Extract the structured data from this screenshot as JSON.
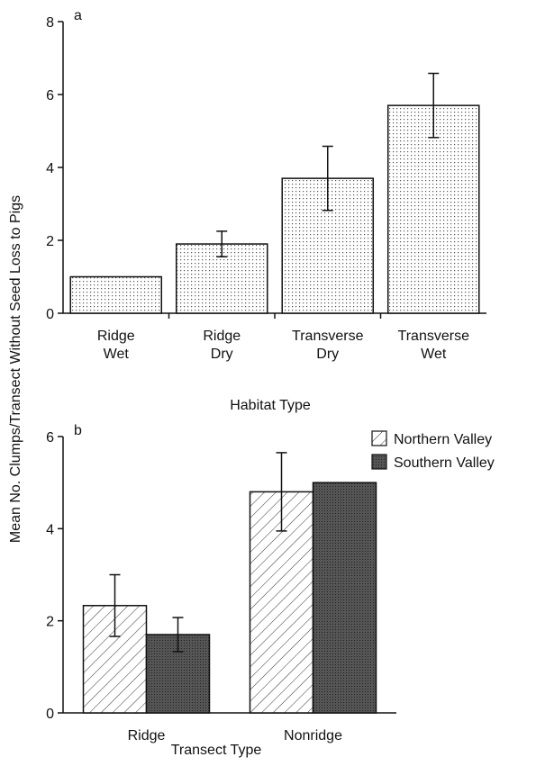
{
  "chart_data": [
    {
      "type": "bar",
      "panel": "a",
      "ylabel": "Mean No. Clumps/Transect Without Seed Loss to Pigs",
      "xlabel": "Habitat Type",
      "categories": [
        [
          "Ridge",
          "Wet"
        ],
        [
          "Ridge",
          "Dry"
        ],
        [
          "Transverse",
          "Dry"
        ],
        [
          "Transverse",
          "Wet"
        ]
      ],
      "values": [
        1.0,
        1.9,
        3.7,
        5.7
      ],
      "errors": [
        null,
        0.35,
        0.88,
        0.88
      ],
      "color": "#e6e6e6",
      "ylim": [
        0,
        8
      ],
      "yticks": [
        0,
        2,
        4,
        6,
        8
      ]
    },
    {
      "type": "grouped-bar",
      "panel": "b",
      "xlabel": "Transect Type",
      "categories": [
        "Ridge",
        "Nonridge"
      ],
      "series": [
        {
          "name": "Northern Valley",
          "color": "#ffffff",
          "values": [
            2.33,
            4.8
          ],
          "errors": [
            0.67,
            0.85
          ]
        },
        {
          "name": "Southern Valley",
          "color": "#555555",
          "values": [
            1.7,
            5.0
          ],
          "errors": [
            0.37,
            null
          ]
        }
      ],
      "ylim": [
        0,
        6
      ],
      "yticks": [
        0,
        2,
        4,
        6
      ]
    }
  ]
}
